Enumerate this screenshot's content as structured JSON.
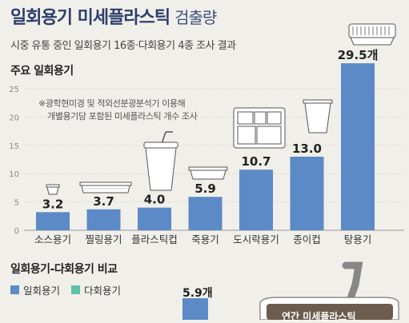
{
  "header": {
    "title_main": "일회용기 미세플라스틱",
    "title_sub": "검출량",
    "subtitle": "시중 유통 중인 일회용기 16종·다회용기 4종 조사 결과"
  },
  "section1": {
    "title": "주요 일회용기"
  },
  "note": {
    "line1": "※광학현미경 및 적외선분광분석기 이용해",
    "line2": "개별용기당 포함된 미세플라스틱 개수 조사"
  },
  "section2": {
    "title": "일회용기-다회용기 비교"
  },
  "legend": {
    "disposable": "일회용기",
    "reusable": "다회용기"
  },
  "callout": {
    "value": "5.9개"
  },
  "annual": {
    "label": "연간 미세플라스틱"
  },
  "colors": {
    "bar": "#5b8ac6",
    "accent_title": "#2d3e6e",
    "disposable": "#5b8ac6",
    "reusable": "#5fc1a8",
    "background": "#f1efea"
  },
  "chart_data": {
    "type": "bar",
    "categories": [
      "소스용기",
      "찔링용기",
      "플라스틱컵",
      "죽용기",
      "도시락용기",
      "종이컵",
      "탕용기"
    ],
    "values": [
      3.2,
      3.7,
      4.0,
      5.9,
      10.7,
      13.0,
      29.5
    ],
    "value_labels": [
      "3.2",
      "3.7",
      "4.0",
      "5.9",
      "10.7",
      "13.0",
      "29.5개"
    ],
    "yticks": [
      0,
      5,
      10,
      15,
      20,
      25
    ],
    "ylim": [
      0,
      30
    ],
    "grid": true
  }
}
